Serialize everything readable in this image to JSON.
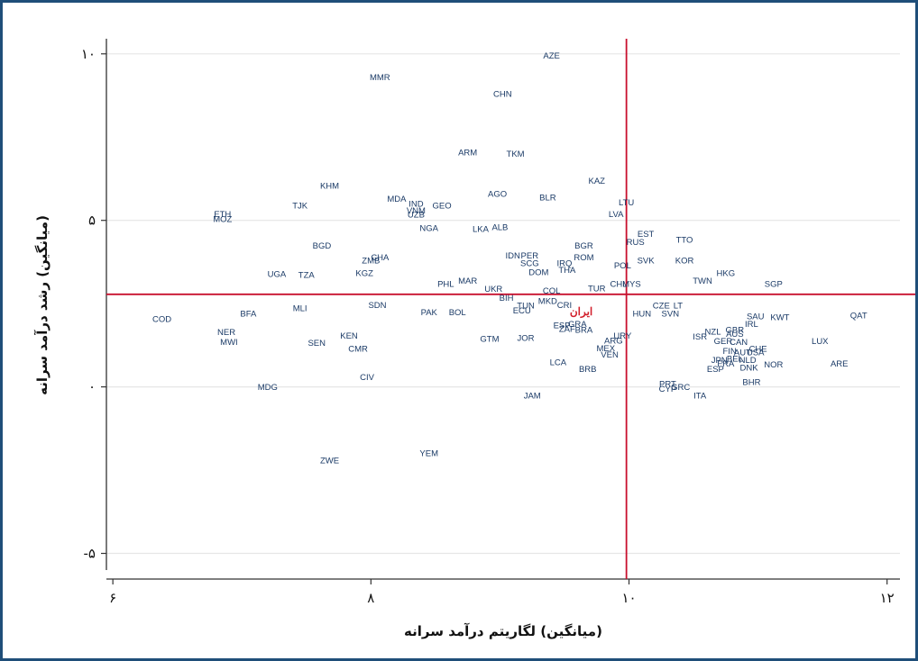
{
  "chart_data": {
    "type": "scatter",
    "title": "",
    "xlabel": "(میانگین) لگاریتم درآمد سرانه",
    "ylabel": "(میانگین) رشد درآمد سرانه",
    "xlim": [
      5.95,
      12.1
    ],
    "ylim": [
      -5.5,
      10.4
    ],
    "x_ticks": [
      6,
      8,
      10,
      12
    ],
    "x_tick_labels": [
      "۶",
      "۸",
      "۱۰",
      "۱۲"
    ],
    "y_ticks": [
      -5,
      0,
      5,
      10
    ],
    "y_tick_labels": [
      "-۵",
      "۰",
      "۵",
      "۱۰"
    ],
    "grid": "horizontal",
    "reference_lines": {
      "x": 9.98,
      "y": 2.78,
      "color": "#c8102e"
    },
    "highlight_color": "#d21f2b",
    "marker_label_color": "#1a3a66",
    "points": [
      {
        "label": "AZE",
        "x": 9.4,
        "y": 9.95
      },
      {
        "label": "MMR",
        "x": 8.07,
        "y": 9.3
      },
      {
        "label": "CHN",
        "x": 9.02,
        "y": 8.8
      },
      {
        "label": "ARM",
        "x": 8.75,
        "y": 7.05
      },
      {
        "label": "TKM",
        "x": 9.12,
        "y": 7.0
      },
      {
        "label": "KAZ",
        "x": 9.75,
        "y": 6.2
      },
      {
        "label": "KHM",
        "x": 7.68,
        "y": 6.05
      },
      {
        "label": "AGO",
        "x": 8.98,
        "y": 5.8
      },
      {
        "label": "BLR",
        "x": 9.37,
        "y": 5.7
      },
      {
        "label": "LTU",
        "x": 9.98,
        "y": 5.55
      },
      {
        "label": "TJK",
        "x": 7.45,
        "y": 5.45
      },
      {
        "label": "MDA",
        "x": 8.2,
        "y": 5.65
      },
      {
        "label": "IND",
        "x": 8.35,
        "y": 5.5
      },
      {
        "label": "GEO",
        "x": 8.55,
        "y": 5.45
      },
      {
        "label": "VNM",
        "x": 8.35,
        "y": 5.3
      },
      {
        "label": "UZB",
        "x": 8.35,
        "y": 5.18
      },
      {
        "label": "LVA",
        "x": 9.9,
        "y": 5.2
      },
      {
        "label": "ETH",
        "x": 6.85,
        "y": 5.2
      },
      {
        "label": "MOZ",
        "x": 6.85,
        "y": 5.05
      },
      {
        "label": "NGA",
        "x": 8.45,
        "y": 4.78
      },
      {
        "label": "LKA",
        "x": 8.85,
        "y": 4.75
      },
      {
        "label": "ALB",
        "x": 9.0,
        "y": 4.8
      },
      {
        "label": "EST",
        "x": 10.13,
        "y": 4.6
      },
      {
        "label": "TTO",
        "x": 10.43,
        "y": 4.42
      },
      {
        "label": "RUS",
        "x": 10.05,
        "y": 4.35
      },
      {
        "label": "BGD",
        "x": 7.62,
        "y": 4.25
      },
      {
        "label": "BGR",
        "x": 9.65,
        "y": 4.25
      },
      {
        "label": "IDN",
        "x": 9.1,
        "y": 3.95
      },
      {
        "label": "PER",
        "x": 9.23,
        "y": 3.95
      },
      {
        "label": "ROM",
        "x": 9.65,
        "y": 3.9
      },
      {
        "label": "CHA",
        "x": 8.07,
        "y": 3.9
      },
      {
        "label": "ZMB",
        "x": 8.0,
        "y": 3.8
      },
      {
        "label": "SCG",
        "x": 9.23,
        "y": 3.72
      },
      {
        "label": "IRQ",
        "x": 9.5,
        "y": 3.72
      },
      {
        "label": "SVK",
        "x": 10.13,
        "y": 3.8
      },
      {
        "label": "KOR",
        "x": 10.43,
        "y": 3.8
      },
      {
        "label": "POL",
        "x": 9.95,
        "y": 3.65
      },
      {
        "label": "UGA",
        "x": 7.27,
        "y": 3.4
      },
      {
        "label": "TZA",
        "x": 7.5,
        "y": 3.37
      },
      {
        "label": "KGZ",
        "x": 7.95,
        "y": 3.43
      },
      {
        "label": "DOM",
        "x": 9.3,
        "y": 3.45
      },
      {
        "label": "THA",
        "x": 9.52,
        "y": 3.52
      },
      {
        "label": "HKG",
        "x": 10.75,
        "y": 3.42
      },
      {
        "label": "TWN",
        "x": 10.57,
        "y": 3.2
      },
      {
        "label": "SGP",
        "x": 11.12,
        "y": 3.1
      },
      {
        "label": "PHL",
        "x": 8.58,
        "y": 3.1
      },
      {
        "label": "MAR",
        "x": 8.75,
        "y": 3.2
      },
      {
        "label": "UKR",
        "x": 8.95,
        "y": 2.95
      },
      {
        "label": "TUR",
        "x": 9.75,
        "y": 2.97
      },
      {
        "label": "CHL",
        "x": 9.92,
        "y": 3.1
      },
      {
        "label": "MYS",
        "x": 10.02,
        "y": 3.1
      },
      {
        "label": "COL",
        "x": 9.4,
        "y": 2.9
      },
      {
        "label": "BIH",
        "x": 9.05,
        "y": 2.68
      },
      {
        "label": "MKD",
        "x": 9.37,
        "y": 2.58
      },
      {
        "label": "SDN",
        "x": 8.05,
        "y": 2.47
      },
      {
        "label": "MLI",
        "x": 7.45,
        "y": 2.37
      },
      {
        "label": "TUN",
        "x": 9.2,
        "y": 2.45
      },
      {
        "label": "CRI",
        "x": 9.5,
        "y": 2.47
      },
      {
        "label": "ECU",
        "x": 9.17,
        "y": 2.3
      },
      {
        "label": "BFA",
        "x": 7.05,
        "y": 2.2
      },
      {
        "label": "PAK",
        "x": 8.45,
        "y": 2.25
      },
      {
        "label": "BOL",
        "x": 8.67,
        "y": 2.25
      },
      {
        "label": "CZE",
        "x": 10.25,
        "y": 2.45
      },
      {
        "label": "LT",
        "x": 10.38,
        "y": 2.45
      },
      {
        "label": "HUN",
        "x": 10.1,
        "y": 2.2
      },
      {
        "label": "SVN",
        "x": 10.32,
        "y": 2.2
      },
      {
        "label": "SAU",
        "x": 10.98,
        "y": 2.13
      },
      {
        "label": "KWT",
        "x": 11.17,
        "y": 2.1
      },
      {
        "label": "QAT",
        "x": 11.78,
        "y": 2.15
      },
      {
        "label": "COD",
        "x": 6.38,
        "y": 2.05
      },
      {
        "label": "IRL",
        "x": 10.95,
        "y": 1.9
      },
      {
        "label": "ESP",
        "x": 9.48,
        "y": 1.85
      },
      {
        "label": "ZAF",
        "x": 9.52,
        "y": 1.75
      },
      {
        "label": "GRA",
        "x": 9.6,
        "y": 1.9
      },
      {
        "label": "BRA",
        "x": 9.65,
        "y": 1.72
      },
      {
        "label": "URY",
        "x": 9.95,
        "y": 1.55
      },
      {
        "label": "GBR",
        "x": 10.82,
        "y": 1.72
      },
      {
        "label": "AUS",
        "x": 10.82,
        "y": 1.6
      },
      {
        "label": "NZL",
        "x": 10.65,
        "y": 1.67
      },
      {
        "label": "ISR",
        "x": 10.55,
        "y": 1.52
      },
      {
        "label": "NER",
        "x": 6.88,
        "y": 1.65
      },
      {
        "label": "KEN",
        "x": 7.83,
        "y": 1.55
      },
      {
        "label": "GTM",
        "x": 8.92,
        "y": 1.45
      },
      {
        "label": "JOR",
        "x": 9.2,
        "y": 1.48
      },
      {
        "label": "ARG",
        "x": 9.88,
        "y": 1.4
      },
      {
        "label": "GER",
        "x": 10.73,
        "y": 1.38
      },
      {
        "label": "CAN",
        "x": 10.85,
        "y": 1.35
      },
      {
        "label": "MWI",
        "x": 6.9,
        "y": 1.35
      },
      {
        "label": "SEN",
        "x": 7.58,
        "y": 1.33
      },
      {
        "label": "CMR",
        "x": 7.9,
        "y": 1.15
      },
      {
        "label": "MEX",
        "x": 9.82,
        "y": 1.17
      },
      {
        "label": "CHE",
        "x": 11.0,
        "y": 1.15
      },
      {
        "label": "FIN",
        "x": 10.78,
        "y": 1.08
      },
      {
        "label": "AUT",
        "x": 10.88,
        "y": 1.05
      },
      {
        "label": "USA",
        "x": 10.98,
        "y": 1.05
      },
      {
        "label": "VEN",
        "x": 9.85,
        "y": 0.98
      },
      {
        "label": "LUX",
        "x": 11.48,
        "y": 1.38
      },
      {
        "label": "JPN",
        "x": 10.7,
        "y": 0.82
      },
      {
        "label": "BEL",
        "x": 10.82,
        "y": 0.85
      },
      {
        "label": "NLD",
        "x": 10.92,
        "y": 0.82
      },
      {
        "label": "FRA",
        "x": 10.75,
        "y": 0.7
      },
      {
        "label": "LCA",
        "x": 9.45,
        "y": 0.75
      },
      {
        "label": "BRB",
        "x": 9.68,
        "y": 0.55
      },
      {
        "label": "NOR",
        "x": 11.12,
        "y": 0.68
      },
      {
        "label": "ARE",
        "x": 11.63,
        "y": 0.7
      },
      {
        "label": "ESP",
        "x": 10.67,
        "y": 0.55
      },
      {
        "label": "DNK",
        "x": 10.93,
        "y": 0.58
      },
      {
        "label": "CIV",
        "x": 7.97,
        "y": 0.3
      },
      {
        "label": "BHR",
        "x": 10.95,
        "y": 0.15
      },
      {
        "label": "PRT",
        "x": 10.3,
        "y": 0.1
      },
      {
        "label": "GRC",
        "x": 10.4,
        "y": 0.0
      },
      {
        "label": "CYP",
        "x": 10.3,
        "y": -0.05
      },
      {
        "label": "MDG",
        "x": 7.2,
        "y": 0.0
      },
      {
        "label": "ITA",
        "x": 10.55,
        "y": -0.25
      },
      {
        "label": "JAM",
        "x": 9.25,
        "y": -0.25
      },
      {
        "label": "YEM",
        "x": 8.45,
        "y": -1.98
      },
      {
        "label": "ZWE",
        "x": 7.68,
        "y": -2.2
      },
      {
        "label": "ایران",
        "x": 9.63,
        "y": 2.25,
        "highlight": true
      }
    ]
  }
}
